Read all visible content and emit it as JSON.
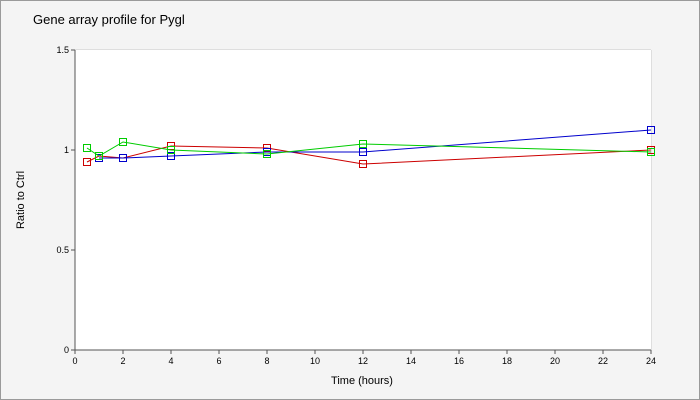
{
  "chart_data": {
    "type": "line",
    "title": "Gene array profile for Pygl",
    "xlabel": "Time (hours)",
    "ylabel": "Ratio to Ctrl",
    "xlim": [
      0,
      24
    ],
    "ylim": [
      0,
      1.5
    ],
    "x_ticks": [
      "0",
      "2",
      "4",
      "6",
      "8",
      "10",
      "12",
      "14",
      "16",
      "18",
      "20",
      "22",
      "24"
    ],
    "y_ticks": [
      "0",
      "0.5",
      "1",
      "1.5"
    ],
    "grid": true,
    "marker": "square",
    "series": [
      {
        "color": "#cc0000",
        "points": [
          [
            0.5,
            0.94
          ],
          [
            1,
            0.97
          ],
          [
            2,
            0.96
          ],
          [
            4,
            1.02
          ],
          [
            8,
            1.01
          ],
          [
            12,
            0.93
          ],
          [
            24,
            1.0
          ]
        ]
      },
      {
        "color": "#0000cc",
        "points": [
          [
            1,
            0.96
          ],
          [
            2,
            0.96
          ],
          [
            4,
            0.97
          ],
          [
            8,
            0.99
          ],
          [
            12,
            0.99
          ],
          [
            24,
            1.1
          ]
        ]
      },
      {
        "color": "#00cc00",
        "points": [
          [
            0.5,
            1.01
          ],
          [
            1,
            0.97
          ],
          [
            2,
            1.04
          ],
          [
            4,
            1.0
          ],
          [
            8,
            0.98
          ],
          [
            12,
            1.03
          ],
          [
            24,
            0.99
          ]
        ]
      }
    ]
  }
}
